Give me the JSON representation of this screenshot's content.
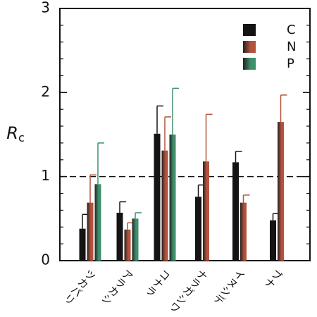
{
  "chart_data": {
    "type": "bar",
    "y_label": "R",
    "y_label_sub": "c",
    "categories": [
      "ツカバリ",
      "アラカシ",
      "コナラ",
      "ナラガシワ",
      "イヌシデ",
      "ブナ"
    ],
    "series": [
      {
        "name": "C",
        "color": "#141414",
        "values": [
          0.38,
          0.57,
          1.51,
          0.76,
          1.17,
          0.48
        ],
        "errors": [
          0.17,
          0.13,
          0.33,
          0.14,
          0.13,
          0.08
        ]
      },
      {
        "name": "N",
        "color": "#b5523c",
        "values": [
          0.69,
          0.37,
          1.31,
          1.18,
          0.69,
          1.65
        ],
        "errors": [
          0.33,
          0.08,
          0.4,
          0.56,
          0.09,
          0.32
        ]
      },
      {
        "name": "P",
        "color": "#3f8f6c",
        "values": [
          0.91,
          0.5,
          1.5,
          null,
          null,
          null
        ],
        "errors": [
          0.49,
          0.07,
          0.55,
          null,
          null,
          null
        ]
      }
    ],
    "ylim": [
      0,
      3
    ],
    "yticks": [
      0,
      1,
      2,
      3
    ],
    "yminorticks": [
      0.2,
      0.4,
      0.6,
      0.8,
      1.2,
      1.4,
      1.6,
      1.8,
      2.2,
      2.4,
      2.6,
      2.8
    ],
    "reference_line": 1,
    "legend": "upper right"
  }
}
